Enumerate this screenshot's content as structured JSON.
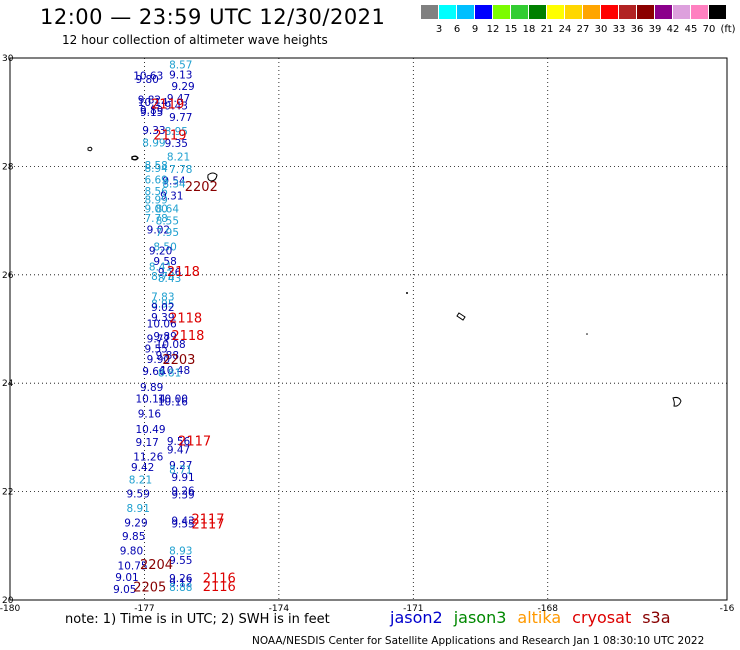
{
  "header": {
    "title": "12:00 — 23:59 UTC 12/30/2021",
    "subtitle": "12 hour collection of altimeter wave heights"
  },
  "legend": {
    "unit": "(ft)",
    "colors": [
      "#808080",
      "#00ffff",
      "#00bfff",
      "#0000ff",
      "#7cfc00",
      "#32cd32",
      "#008000",
      "#ffff00",
      "#ffd700",
      "#ffa500",
      "#ff0000",
      "#b22222",
      "#8b0000",
      "#8b008b",
      "#dda0dd",
      "#ff80c0",
      "#000000"
    ],
    "levels": [
      "3",
      "6",
      "9",
      "12",
      "15",
      "18",
      "21",
      "24",
      "27",
      "30",
      "33",
      "36",
      "39",
      "42",
      "45",
      "70"
    ]
  },
  "map": {
    "x_ticks": [
      "-180",
      "-177",
      "-174",
      "-171",
      "-168",
      "-16"
    ],
    "y_ticks": [
      "30",
      "28",
      "26",
      "24",
      "22",
      "20"
    ],
    "lon_range": [
      -180,
      -164
    ],
    "lat_range": [
      20,
      30
    ],
    "grid": "dotted"
  },
  "satellites": [
    {
      "name": "jason2",
      "color": "#0000cc"
    },
    {
      "name": "jason3",
      "color": "#008800"
    },
    {
      "name": "altika",
      "color": "#ff9900"
    },
    {
      "name": "cryosat",
      "color": "#dd0000"
    },
    {
      "name": "s3a",
      "color": "#880000"
    }
  ],
  "observations": [
    {
      "lon": -176.45,
      "lat": 29.81,
      "text": "8.57",
      "color": "#1fa0d0"
    },
    {
      "lon": -176.45,
      "lat": 29.62,
      "text": "9.13",
      "color": "#0000b0"
    },
    {
      "lon": -177.25,
      "lat": 29.6,
      "text": "10.63",
      "color": "#0000b0"
    },
    {
      "lon": -177.2,
      "lat": 29.54,
      "text": "9.80",
      "color": "#0000b0"
    },
    {
      "lon": -176.4,
      "lat": 29.41,
      "text": "9.29",
      "color": "#0000b0"
    },
    {
      "lon": -176.5,
      "lat": 29.19,
      "text": "9.47",
      "color": "#0000b0"
    },
    {
      "lon": -177.15,
      "lat": 29.16,
      "text": "9.82",
      "color": "#0000b0"
    },
    {
      "lon": -177.15,
      "lat": 29.11,
      "text": "10.14",
      "color": "#0000b0"
    },
    {
      "lon": -176.55,
      "lat": 29.05,
      "text": "9.43",
      "color": "#0000b0"
    },
    {
      "lon": -177.1,
      "lat": 28.97,
      "text": "9.89",
      "color": "#0000b0"
    },
    {
      "lon": -177.1,
      "lat": 28.93,
      "text": "9.15",
      "color": "#0000b0"
    },
    {
      "lon": -176.45,
      "lat": 28.84,
      "text": "9.77",
      "color": "#0000b0"
    },
    {
      "lon": -177.05,
      "lat": 28.6,
      "text": "9.33",
      "color": "#0000b0"
    },
    {
      "lon": -176.55,
      "lat": 28.58,
      "text": "8.95",
      "color": "#1fa0d0"
    },
    {
      "lon": -177.05,
      "lat": 28.37,
      "text": "8.99",
      "color": "#1fa0d0"
    },
    {
      "lon": -176.55,
      "lat": 28.36,
      "text": "9.35",
      "color": "#0000b0"
    },
    {
      "lon": -176.5,
      "lat": 28.11,
      "text": "8.21",
      "color": "#1fa0d0"
    },
    {
      "lon": -177.0,
      "lat": 27.95,
      "text": "8.58",
      "color": "#1fa0d0"
    },
    {
      "lon": -177.0,
      "lat": 27.9,
      "text": "8.94",
      "color": "#1fa0d0"
    },
    {
      "lon": -176.45,
      "lat": 27.88,
      "text": "7.78",
      "color": "#1fa0d0"
    },
    {
      "lon": -176.6,
      "lat": 27.67,
      "text": "9.54",
      "color": "#0000b0"
    },
    {
      "lon": -176.6,
      "lat": 27.61,
      "text": "8.34",
      "color": "#1fa0d0"
    },
    {
      "lon": -177.0,
      "lat": 27.68,
      "text": "6.69",
      "color": "#1fa0d0"
    },
    {
      "lon": -177.0,
      "lat": 27.47,
      "text": "8.56",
      "color": "#1fa0d0"
    },
    {
      "lon": -176.65,
      "lat": 27.39,
      "text": "9.31",
      "color": "#0000b0"
    },
    {
      "lon": -177.0,
      "lat": 27.32,
      "text": "8.99",
      "color": "#1fa0d0"
    },
    {
      "lon": -177.0,
      "lat": 27.15,
      "text": "9.00",
      "color": "#1fa0d0"
    },
    {
      "lon": -176.75,
      "lat": 27.15,
      "text": "8.64",
      "color": "#1fa0d0"
    },
    {
      "lon": -177.0,
      "lat": 26.97,
      "text": "7.78",
      "color": "#1fa0d0"
    },
    {
      "lon": -176.75,
      "lat": 26.93,
      "text": "8.55",
      "color": "#1fa0d0"
    },
    {
      "lon": -176.95,
      "lat": 26.76,
      "text": "9.02",
      "color": "#0000b0"
    },
    {
      "lon": -176.75,
      "lat": 26.72,
      "text": "7.95",
      "color": "#1fa0d0"
    },
    {
      "lon": -176.8,
      "lat": 26.45,
      "text": "8.50",
      "color": "#1fa0d0"
    },
    {
      "lon": -176.9,
      "lat": 26.37,
      "text": "9.20",
      "color": "#0000b0"
    },
    {
      "lon": -176.8,
      "lat": 26.18,
      "text": "9.58",
      "color": "#0000b0"
    },
    {
      "lon": -176.9,
      "lat": 26.08,
      "text": "8.41",
      "color": "#1fa0d0"
    },
    {
      "lon": -176.7,
      "lat": 25.98,
      "text": "9.36",
      "color": "#0000b0"
    },
    {
      "lon": -176.85,
      "lat": 25.9,
      "text": "8.78",
      "color": "#1fa0d0"
    },
    {
      "lon": -176.7,
      "lat": 25.87,
      "text": "8.43",
      "color": "#1fa0d0"
    },
    {
      "lon": -176.85,
      "lat": 25.53,
      "text": "7.83",
      "color": "#1fa0d0"
    },
    {
      "lon": -176.85,
      "lat": 25.4,
      "text": "8.95",
      "color": "#1fa0d0"
    },
    {
      "lon": -176.85,
      "lat": 25.33,
      "text": "9.02",
      "color": "#0000b0"
    },
    {
      "lon": -176.85,
      "lat": 25.15,
      "text": "9.39",
      "color": "#0000b0"
    },
    {
      "lon": -176.95,
      "lat": 25.03,
      "text": "10.06",
      "color": "#0000b0"
    },
    {
      "lon": -176.8,
      "lat": 24.8,
      "text": "9.89",
      "color": "#0000b0"
    },
    {
      "lon": -176.95,
      "lat": 24.75,
      "text": "9.77",
      "color": "#0000b0"
    },
    {
      "lon": -176.75,
      "lat": 24.65,
      "text": "10.08",
      "color": "#0000b0"
    },
    {
      "lon": -177.0,
      "lat": 24.57,
      "text": "9.55",
      "color": "#0000b0"
    },
    {
      "lon": -176.75,
      "lat": 24.45,
      "text": "9.88",
      "color": "#0000b0"
    },
    {
      "lon": -176.95,
      "lat": 24.37,
      "text": "9.90",
      "color": "#0000b0"
    },
    {
      "lon": -176.65,
      "lat": 24.17,
      "text": "10.48",
      "color": "#0000b0"
    },
    {
      "lon": -177.05,
      "lat": 24.15,
      "text": "9.66",
      "color": "#0000b0"
    },
    {
      "lon": -176.7,
      "lat": 24.12,
      "text": "8.81",
      "color": "#1fa0d0"
    },
    {
      "lon": -177.1,
      "lat": 23.86,
      "text": "9.89",
      "color": "#0000b0"
    },
    {
      "lon": -177.2,
      "lat": 23.64,
      "text": "10.14",
      "color": "#0000b0"
    },
    {
      "lon": -176.7,
      "lat": 23.64,
      "text": "10.00",
      "color": "#0000b0"
    },
    {
      "lon": -176.7,
      "lat": 23.59,
      "text": "10.16",
      "color": "#0000b0"
    },
    {
      "lon": -177.15,
      "lat": 23.37,
      "text": "9.16",
      "color": "#0000b0"
    },
    {
      "lon": -177.2,
      "lat": 23.08,
      "text": "10.49",
      "color": "#0000b0"
    },
    {
      "lon": -176.5,
      "lat": 22.86,
      "text": "9.56",
      "color": "#0000b0"
    },
    {
      "lon": -177.2,
      "lat": 22.84,
      "text": "9.17",
      "color": "#0000b0"
    },
    {
      "lon": -176.5,
      "lat": 22.7,
      "text": "9.47",
      "color": "#0000b0"
    },
    {
      "lon": -177.25,
      "lat": 22.57,
      "text": "11.26",
      "color": "#0000b0"
    },
    {
      "lon": -176.45,
      "lat": 22.42,
      "text": "9.27",
      "color": "#0000b0"
    },
    {
      "lon": -176.45,
      "lat": 22.33,
      "text": "8.71",
      "color": "#1fa0d0"
    },
    {
      "lon": -177.3,
      "lat": 22.38,
      "text": "9.42",
      "color": "#0000b0"
    },
    {
      "lon": -176.4,
      "lat": 22.2,
      "text": "9.91",
      "color": "#0000b0"
    },
    {
      "lon": -177.35,
      "lat": 22.15,
      "text": "8.21",
      "color": "#1fa0d0"
    },
    {
      "lon": -176.4,
      "lat": 21.95,
      "text": "9.26",
      "color": "#0000b0"
    },
    {
      "lon": -176.4,
      "lat": 21.87,
      "text": "9.39",
      "color": "#0000b0"
    },
    {
      "lon": -177.4,
      "lat": 21.89,
      "text": "9.59",
      "color": "#0000b0"
    },
    {
      "lon": -177.4,
      "lat": 21.62,
      "text": "8.91",
      "color": "#1fa0d0"
    },
    {
      "lon": -177.45,
      "lat": 21.36,
      "text": "9.29",
      "color": "#0000b0"
    },
    {
      "lon": -176.4,
      "lat": 21.39,
      "text": "9.43",
      "color": "#0000b0"
    },
    {
      "lon": -176.4,
      "lat": 21.34,
      "text": "9.55",
      "color": "#0000b0"
    },
    {
      "lon": -177.5,
      "lat": 21.11,
      "text": "9.85",
      "color": "#0000b0"
    },
    {
      "lon": -177.55,
      "lat": 20.84,
      "text": "9.80",
      "color": "#0000b0"
    },
    {
      "lon": -176.45,
      "lat": 20.84,
      "text": "8.93",
      "color": "#1fa0d0"
    },
    {
      "lon": -176.45,
      "lat": 20.66,
      "text": "9.55",
      "color": "#0000b0"
    },
    {
      "lon": -177.6,
      "lat": 20.56,
      "text": "10.75",
      "color": "#0000b0"
    },
    {
      "lon": -177.65,
      "lat": 20.35,
      "text": "9.01",
      "color": "#0000b0"
    },
    {
      "lon": -176.45,
      "lat": 20.33,
      "text": "9.26",
      "color": "#0000b0"
    },
    {
      "lon": -176.45,
      "lat": 20.25,
      "text": "9.12",
      "color": "#0000b0"
    },
    {
      "lon": -177.7,
      "lat": 20.13,
      "text": "9.05",
      "color": "#0000b0"
    },
    {
      "lon": -176.45,
      "lat": 20.17,
      "text": "8.88",
      "color": "#1fa0d0"
    }
  ],
  "time_labels": [
    {
      "lon": -176.85,
      "lat": 29.07,
      "text": "2119",
      "color": "#dd0000"
    },
    {
      "lon": -176.8,
      "lat": 28.5,
      "text": "2119",
      "color": "#dd0000"
    },
    {
      "lon": -176.1,
      "lat": 27.55,
      "text": "2202",
      "color": "#880000"
    },
    {
      "lon": -176.5,
      "lat": 25.98,
      "text": "2118",
      "color": "#dd0000"
    },
    {
      "lon": -176.45,
      "lat": 25.12,
      "text": "2118",
      "color": "#dd0000"
    },
    {
      "lon": -176.4,
      "lat": 24.8,
      "text": "2118",
      "color": "#dd0000"
    },
    {
      "lon": -176.6,
      "lat": 24.35,
      "text": "2203",
      "color": "#880000"
    },
    {
      "lon": -176.25,
      "lat": 22.85,
      "text": "2117",
      "color": "#dd0000"
    },
    {
      "lon": -175.95,
      "lat": 21.41,
      "text": "2117",
      "color": "#dd0000"
    },
    {
      "lon": -175.95,
      "lat": 21.32,
      "text": "2117",
      "color": "#dd0000"
    },
    {
      "lon": -177.1,
      "lat": 20.57,
      "text": "2204",
      "color": "#880000"
    },
    {
      "lon": -175.7,
      "lat": 20.32,
      "text": "2116",
      "color": "#dd0000"
    },
    {
      "lon": -177.25,
      "lat": 20.16,
      "text": "2205",
      "color": "#880000"
    },
    {
      "lon": -175.7,
      "lat": 20.17,
      "text": "2116",
      "color": "#dd0000"
    }
  ],
  "footer": {
    "note": "note:  1) Time is in UTC;  2) SWH is in feet",
    "credit": "NOAA/NESDIS Center for Satellite Applications and Research    Jan  1 08:30:10 UTC 2022"
  }
}
